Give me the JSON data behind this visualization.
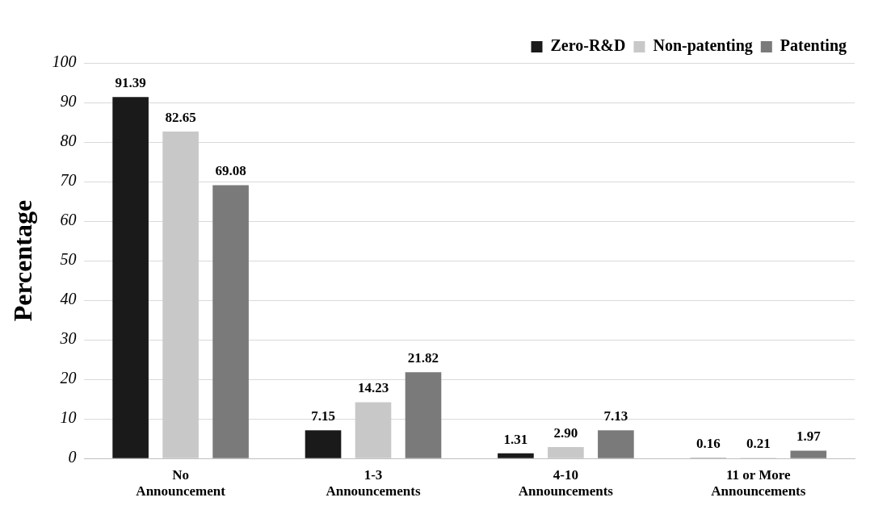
{
  "chart_data": {
    "type": "bar",
    "ylabel": "Percentage",
    "categories": [
      "No Announcement",
      "1-3 Announcements",
      "4-10 Announcements",
      "11 or More Announcements"
    ],
    "series": [
      {
        "name": "Zero-R&D",
        "color": "#1a1a1a",
        "values": [
          91.39,
          7.15,
          1.31,
          0.16
        ],
        "value_labels": [
          "91.39",
          "7.15",
          "1.31",
          "0.16"
        ]
      },
      {
        "name": "Non-patenting",
        "color": "#c8c8c8",
        "values": [
          82.65,
          14.23,
          2.9,
          0.21
        ],
        "value_labels": [
          "82.65",
          "14.23",
          "2.90",
          "0.21"
        ]
      },
      {
        "name": "Patenting",
        "color": "#7a7a7a",
        "values": [
          69.08,
          21.82,
          7.13,
          1.97
        ],
        "value_labels": [
          "69.08",
          "21.82",
          "7.13",
          "1.97"
        ]
      }
    ],
    "ylim": [
      0,
      100
    ],
    "yticks": [
      0,
      10,
      20,
      30,
      40,
      50,
      60,
      70,
      80,
      90,
      100
    ],
    "grid": "y",
    "legend": "top right"
  }
}
